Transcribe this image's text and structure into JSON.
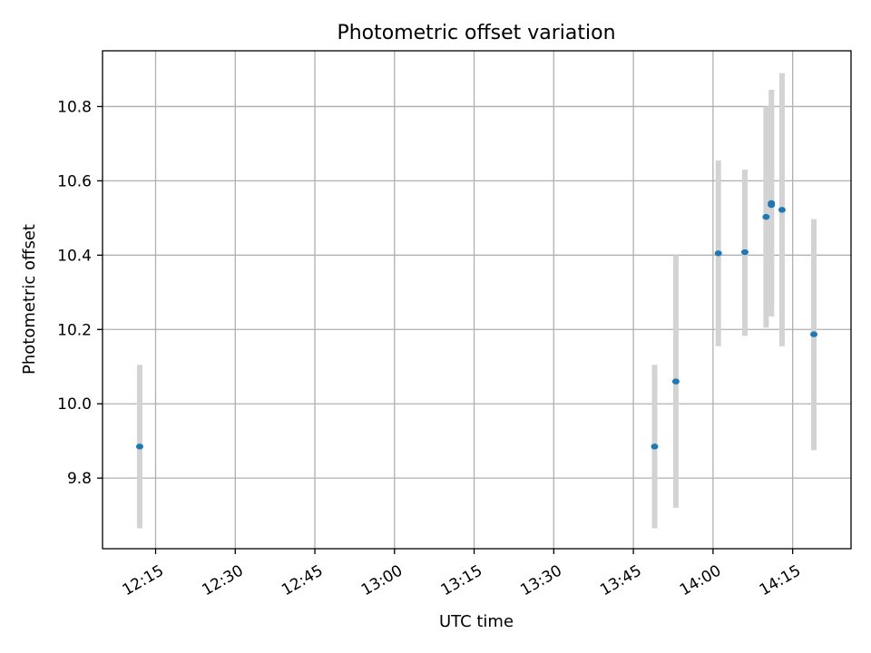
{
  "chart_data": {
    "type": "scatter",
    "title": "Photometric offset variation",
    "xlabel": "UTC time",
    "ylabel": "Photometric offset",
    "x_ticks": [
      "12:15",
      "12:30",
      "12:45",
      "13:00",
      "13:15",
      "13:30",
      "13:45",
      "14:00",
      "14:15"
    ],
    "y_ticks": [
      "9.8",
      "10.0",
      "10.2",
      "10.4",
      "10.6",
      "10.8"
    ],
    "xlim": [
      "12:05",
      "14:26"
    ],
    "ylim": [
      9.61,
      10.95
    ],
    "grid": true,
    "marker_color": "#1f77b4",
    "errorbar_color": "#d3d3d3",
    "points": [
      {
        "x": "12:12",
        "y": 9.885,
        "yerr_low": 9.665,
        "yerr_high": 10.105
      },
      {
        "x": "13:49",
        "y": 9.885,
        "yerr_low": 9.665,
        "yerr_high": 10.105
      },
      {
        "x": "13:53",
        "y": 10.06,
        "yerr_low": 9.72,
        "yerr_high": 10.4
      },
      {
        "x": "14:01",
        "y": 10.405,
        "yerr_low": 10.155,
        "yerr_high": 10.655
      },
      {
        "x": "14:06",
        "y": 10.408,
        "yerr_low": 10.183,
        "yerr_high": 10.63
      },
      {
        "x": "14:10",
        "y": 10.503,
        "yerr_low": 10.205,
        "yerr_high": 10.8
      },
      {
        "x": "14:11",
        "y": 10.535,
        "yerr_low": 10.27,
        "yerr_high": 10.8
      },
      {
        "x": "14:11",
        "y": 10.54,
        "yerr_low": 10.235,
        "yerr_high": 10.845
      },
      {
        "x": "14:13",
        "y": 10.522,
        "yerr_low": 10.155,
        "yerr_high": 10.89
      },
      {
        "x": "14:19",
        "y": 10.187,
        "yerr_low": 9.875,
        "yerr_high": 10.497
      }
    ]
  }
}
